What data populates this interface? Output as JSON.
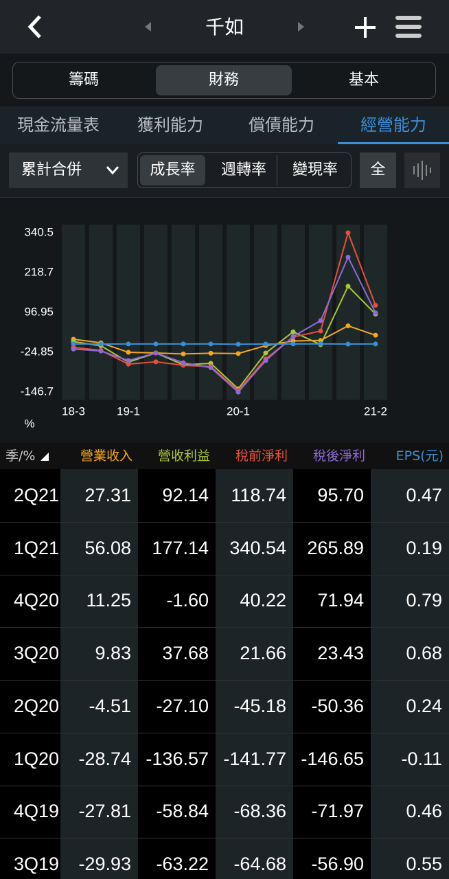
{
  "header": {
    "title": "千如"
  },
  "tabs": [
    "籌碼",
    "財務",
    "基本"
  ],
  "sub_tabs": [
    "現金流量表",
    "獲利能力",
    "償債能力",
    "經營能力"
  ],
  "controls": {
    "dropdown": "累計合併",
    "modes": [
      "成長率",
      "週轉率",
      "變現率"
    ],
    "all": "全"
  },
  "chart_data": {
    "type": "line",
    "categories": [
      "18-3",
      null,
      "19-1",
      null,
      null,
      null,
      "20-1",
      null,
      null,
      null,
      null,
      "21-2"
    ],
    "ylim": [
      -169.8,
      365.7
    ],
    "yticks": [
      340.5,
      218.7,
      96.95,
      -24.85,
      -146.7
    ],
    "y_label": "%",
    "series": [
      {
        "name": "營業收入",
        "color": "#f5a623",
        "values": [
          15,
          4,
          -25,
          -27,
          -29.93,
          -27.81,
          -28.74,
          -4.51,
          9.83,
          11.25,
          56.08,
          27.31
        ]
      },
      {
        "name": "營收利益",
        "color": "#a9c83c",
        "values": [
          8,
          -5,
          -55,
          -27,
          -63.22,
          -58.84,
          -136.57,
          -27.1,
          37.68,
          -1.6,
          177.14,
          92.14
        ]
      },
      {
        "name": "稅前淨利",
        "color": "#e8503a",
        "values": [
          -10,
          -19,
          -61,
          -54,
          -64.68,
          -68.36,
          -141.77,
          -45.18,
          21.66,
          40.22,
          340.54,
          118.74
        ]
      },
      {
        "name": "稅後淨利",
        "color": "#8f6bd6",
        "values": [
          -15,
          -21,
          -50,
          -27,
          -56.9,
          -71.97,
          -146.65,
          -50.36,
          23.43,
          71.94,
          265.89,
          95.7
        ]
      },
      {
        "name": "EPS(元)",
        "color": "#3b8fd8",
        "values": [
          0.5,
          0.4,
          0.45,
          0.5,
          0.55,
          0.46,
          -0.11,
          0.24,
          0.68,
          0.79,
          0.19,
          0.47
        ]
      }
    ]
  },
  "table": {
    "corner": "季/%",
    "rows": [
      {
        "label": "2Q21",
        "cells": [
          "27.31",
          "92.14",
          "118.74",
          "95.70",
          "0.47"
        ]
      },
      {
        "label": "1Q21",
        "cells": [
          "56.08",
          "177.14",
          "340.54",
          "265.89",
          "0.19"
        ]
      },
      {
        "label": "4Q20",
        "cells": [
          "11.25",
          "-1.60",
          "40.22",
          "71.94",
          "0.79"
        ]
      },
      {
        "label": "3Q20",
        "cells": [
          "9.83",
          "37.68",
          "21.66",
          "23.43",
          "0.68"
        ]
      },
      {
        "label": "2Q20",
        "cells": [
          "-4.51",
          "-27.10",
          "-45.18",
          "-50.36",
          "0.24"
        ]
      },
      {
        "label": "1Q20",
        "cells": [
          "-28.74",
          "-136.57",
          "-141.77",
          "-146.65",
          "-0.11"
        ]
      },
      {
        "label": "4Q19",
        "cells": [
          "-27.81",
          "-58.84",
          "-68.36",
          "-71.97",
          "0.46"
        ]
      },
      {
        "label": "3Q19",
        "cells": [
          "-29.93",
          "-63.22",
          "-64.68",
          "-56.90",
          "0.55"
        ]
      }
    ]
  }
}
